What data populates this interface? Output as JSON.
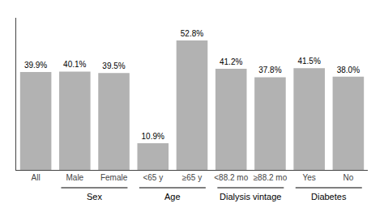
{
  "chart_data": {
    "type": "bar",
    "categories": [
      "All",
      "Male",
      "Female",
      "<65 y",
      "≥65 y",
      "<88.2 mo",
      "≥88.2 mo",
      "Yes",
      "No"
    ],
    "values": [
      39.9,
      40.1,
      39.5,
      10.9,
      52.8,
      41.2,
      37.8,
      41.5,
      38.0
    ],
    "value_labels": [
      "39.9%",
      "40.1%",
      "39.5%",
      "10.9%",
      "52.8%",
      "41.2%",
      "37.8%",
      "41.5%",
      "38.0%"
    ],
    "data_labels": true,
    "color": "#b2b2b2",
    "ylim": [
      0,
      62
    ],
    "grid": false,
    "tick_labels": "x",
    "annotations": [
      {
        "text": "Sex",
        "categories": [
          "Male",
          "Female"
        ]
      },
      {
        "text": "Age",
        "categories": [
          "<65 y",
          "≥65 y"
        ]
      },
      {
        "text": "Dialysis vintage",
        "categories": [
          "<88.2 mo",
          "≥88.2 mo"
        ]
      },
      {
        "text": "Diabetes",
        "categories": [
          "Yes",
          "No"
        ]
      }
    ]
  }
}
